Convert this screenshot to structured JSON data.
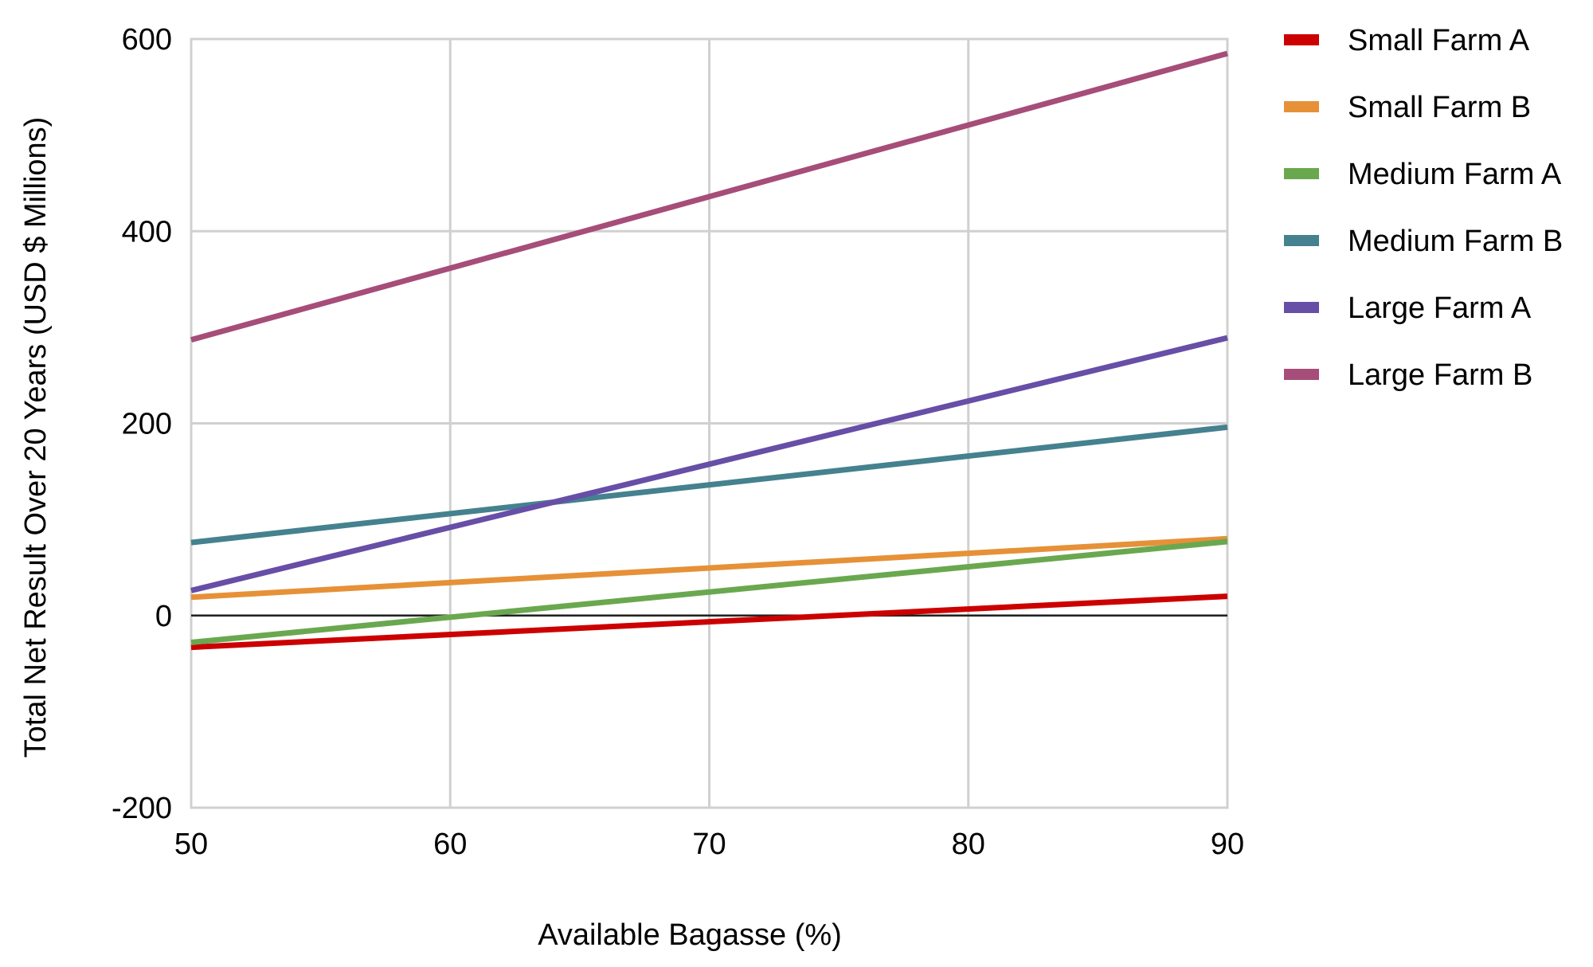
{
  "chart_data": {
    "type": "line",
    "title": "",
    "xlabel": "Available Bagasse (%)",
    "ylabel": "Total Net Result Over 20 Years (USD $ Millions)",
    "xlim": [
      50,
      90
    ],
    "ylim": [
      -200,
      600
    ],
    "x_ticks": [
      "50",
      "60",
      "70",
      "80",
      "90"
    ],
    "y_ticks": [
      "-200",
      "0",
      "200",
      "400",
      "600"
    ],
    "grid": true,
    "legend_position": "right",
    "x": [
      50,
      90
    ],
    "series": [
      {
        "name": "Small Farm A",
        "color": "#cc0000",
        "values": [
          -33,
          20
        ]
      },
      {
        "name": "Small Farm B",
        "color": "#e69138",
        "values": [
          19,
          80
        ]
      },
      {
        "name": "Medium Farm A",
        "color": "#6aa84f",
        "values": [
          -28,
          77
        ]
      },
      {
        "name": "Medium Farm B",
        "color": "#45818e",
        "values": [
          76,
          196
        ]
      },
      {
        "name": "Large Farm A",
        "color": "#674ea7",
        "values": [
          26,
          289
        ]
      },
      {
        "name": "Large Farm B",
        "color": "#a64d79",
        "values": [
          287,
          585
        ]
      }
    ]
  }
}
